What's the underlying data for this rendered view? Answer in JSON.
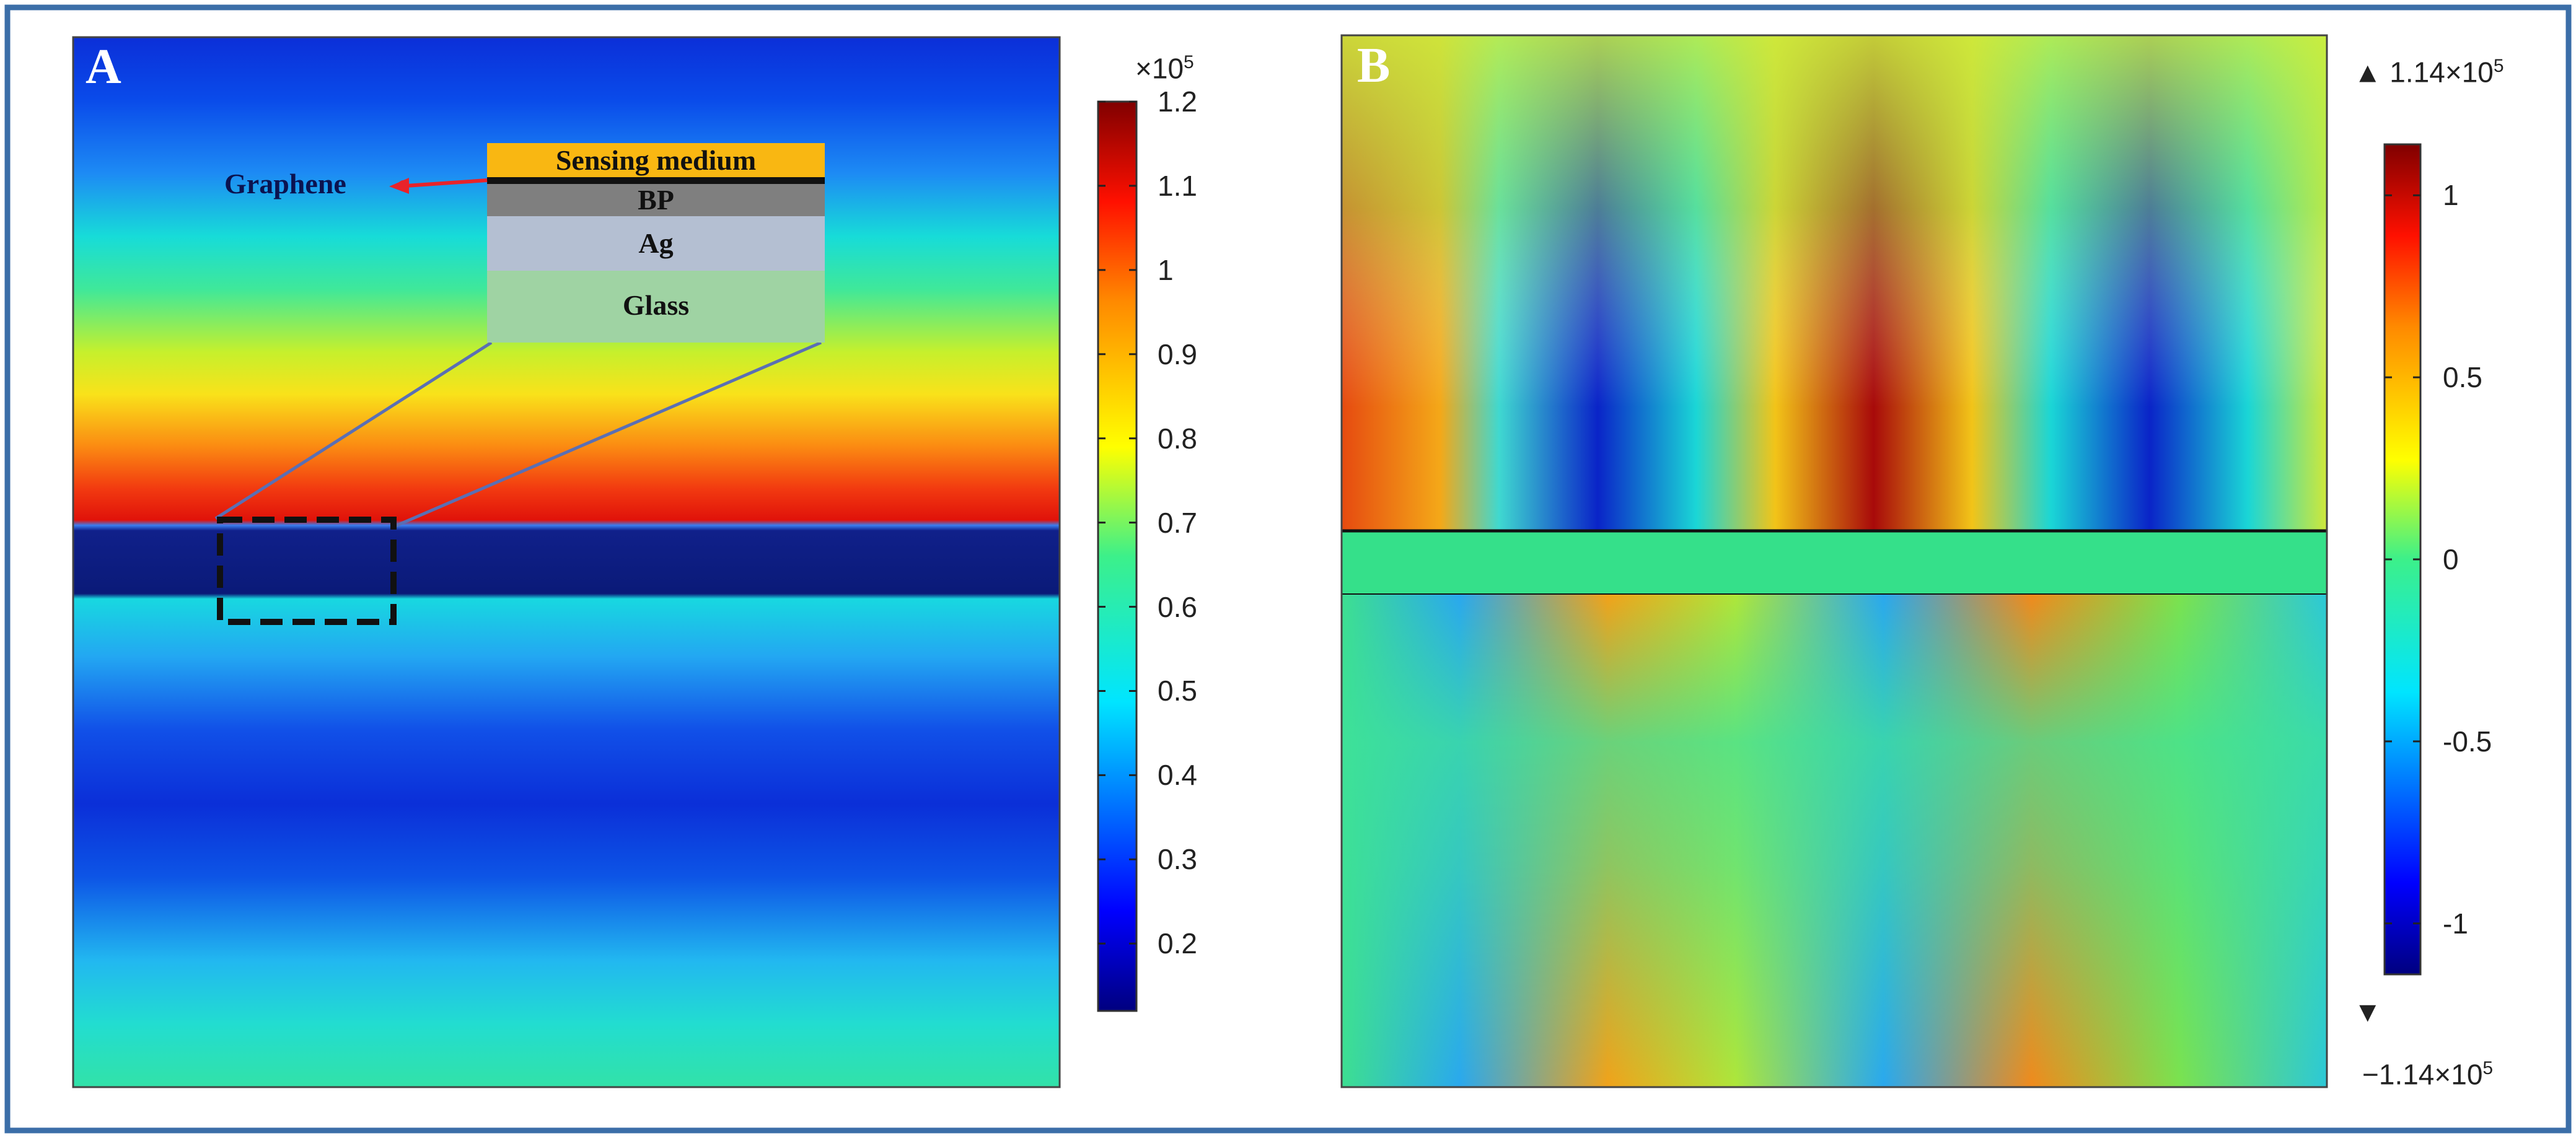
{
  "figure": {
    "panels": [
      {
        "label": "A",
        "colorbar": {
          "multiplier": "×10",
          "multiplier_exp": "5",
          "ticks": [
            "1.2",
            "1.1",
            "1",
            "0.9",
            "0.8",
            "0.7",
            "0.6",
            "0.5",
            "0.4",
            "0.3",
            "0.2"
          ],
          "tick_values": [
            1.2,
            1.1,
            1.0,
            0.9,
            0.8,
            0.7,
            0.6,
            0.5,
            0.4,
            0.3,
            0.2
          ],
          "range": [
            0.12,
            1.2
          ]
        },
        "inset": {
          "layers": [
            "Sensing medium",
            "BP",
            "Ag",
            "Glass"
          ],
          "pointer_label": "Graphene",
          "colors": {
            "sensing": "#f9b712",
            "graphene": "#111111",
            "bp": "#7f7f7f",
            "ag": "#b4bfd2",
            "glass": "#9fd3a3",
            "pointer": "#e8232a"
          }
        }
      },
      {
        "label": "B",
        "colorbar": {
          "max_label": "▲ 1.14×10",
          "max_exp": "5",
          "min_label": "−1.14×10",
          "min_exp": "5",
          "min_marker": "▼",
          "ticks": [
            "1",
            "0.5",
            "0",
            "-0.5",
            "-1"
          ],
          "tick_values": [
            1,
            0.5,
            0,
            -0.5,
            -1
          ],
          "range": [
            -1.14,
            1.14
          ]
        }
      }
    ],
    "colors": {
      "frame": "#3b6ea8",
      "colormap": "jet"
    }
  }
}
